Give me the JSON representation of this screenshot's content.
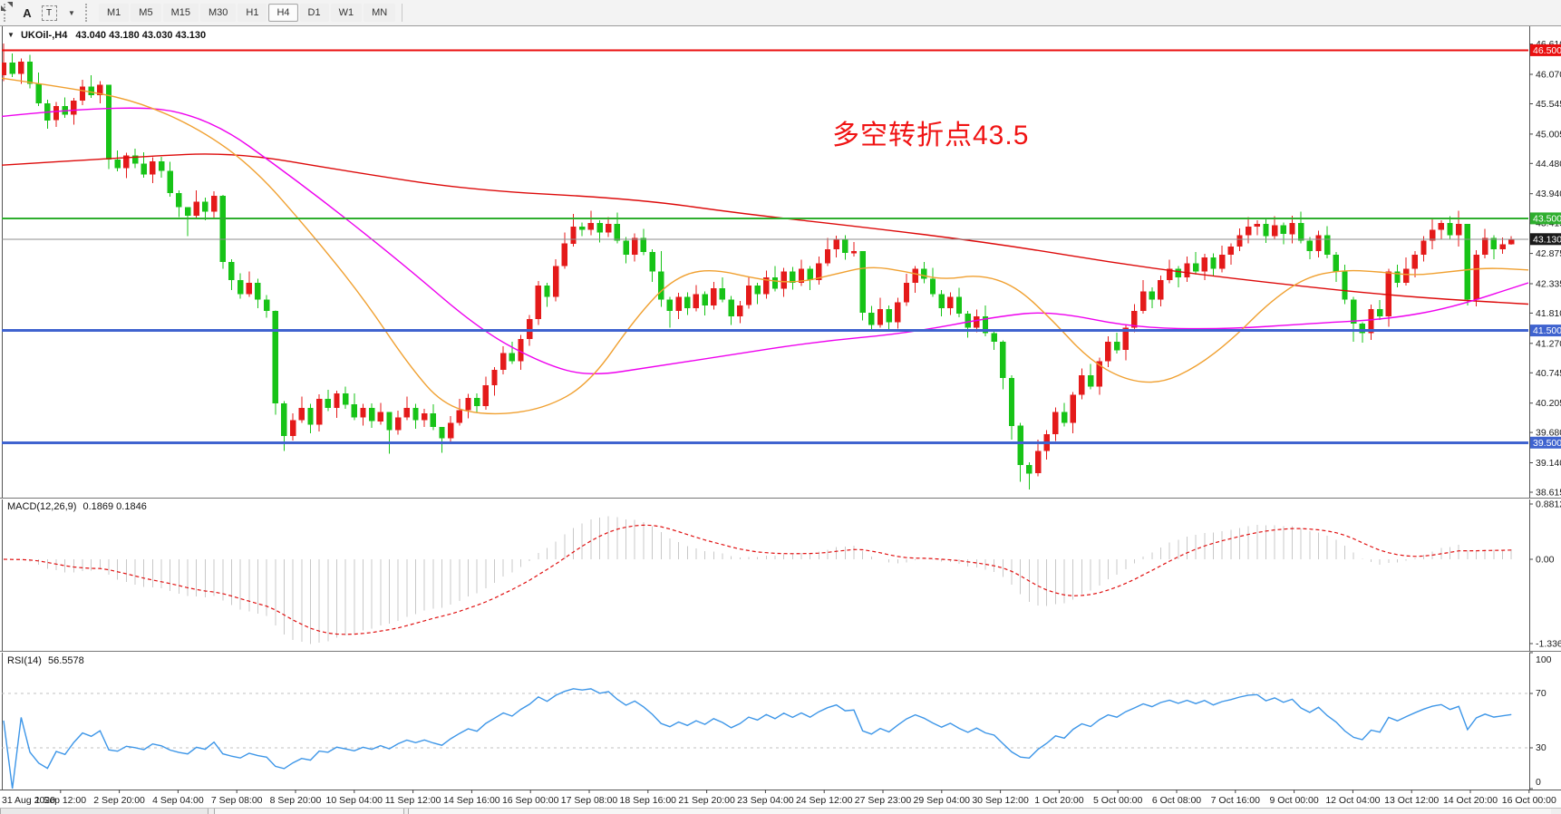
{
  "toolbar": {
    "tool_a": "A",
    "tool_t": "T",
    "timeframes": [
      "M1",
      "M5",
      "M15",
      "M30",
      "H1",
      "H4",
      "D1",
      "W1",
      "MN"
    ],
    "active_timeframe": "H4"
  },
  "title": {
    "collapse_icon": "▼",
    "symbol_period": "UKOil-,H4",
    "ohlc_text": "43.040 43.180 43.030 43.130"
  },
  "annotation": {
    "text": "多空转折点43.5",
    "color": "#f01414"
  },
  "indicators": {
    "macd": {
      "label": "MACD(12,26,9)",
      "values": "0.1869 0.1846"
    },
    "rsi": {
      "label": "RSI(14)",
      "value": "56.5578"
    }
  },
  "chart_data": {
    "type": "candlestick",
    "symbol": "UKOil-",
    "timeframe": "H4",
    "color_convention": "red = bullish, green = bearish (Chinese convention)",
    "bull_color": "#e41a1a",
    "bear_color": "#17c317",
    "current_price": 43.13,
    "last_candle_ohlc": [
      43.04,
      43.18,
      43.03,
      43.13
    ],
    "first_open": 46.05,
    "closes": [
      46.28,
      46.08,
      46.3,
      45.9,
      45.55,
      45.25,
      45.5,
      45.35,
      45.6,
      45.85,
      45.7,
      45.88,
      44.55,
      44.4,
      44.62,
      44.48,
      44.28,
      44.52,
      44.35,
      43.95,
      43.7,
      43.55,
      43.8,
      43.62,
      43.9,
      42.72,
      42.4,
      42.15,
      42.35,
      42.05,
      41.85,
      40.2,
      39.62,
      39.9,
      40.12,
      39.82,
      40.28,
      40.12,
      40.38,
      40.18,
      39.95,
      40.12,
      39.88,
      40.05,
      39.72,
      39.95,
      40.12,
      39.9,
      40.02,
      39.78,
      39.58,
      39.85,
      40.08,
      40.3,
      40.15,
      40.52,
      40.8,
      41.1,
      40.95,
      41.35,
      41.7,
      42.3,
      42.1,
      42.65,
      43.05,
      43.35,
      43.3,
      43.42,
      43.25,
      43.4,
      43.1,
      42.85,
      43.15,
      42.9,
      42.55,
      42.05,
      41.85,
      42.1,
      41.9,
      42.15,
      41.95,
      42.25,
      42.05,
      41.75,
      41.95,
      42.3,
      42.15,
      42.45,
      42.25,
      42.55,
      42.35,
      42.6,
      42.4,
      42.7,
      42.95,
      43.12,
      42.88,
      42.92,
      41.82,
      41.6,
      41.88,
      41.65,
      42.0,
      42.35,
      42.6,
      42.42,
      42.15,
      41.9,
      42.1,
      41.8,
      41.55,
      41.75,
      41.45,
      41.3,
      40.65,
      39.8,
      39.1,
      38.95,
      39.35,
      39.65,
      40.05,
      39.85,
      40.35,
      40.7,
      40.5,
      40.95,
      41.3,
      41.15,
      41.55,
      41.85,
      42.2,
      42.05,
      42.4,
      42.6,
      42.45,
      42.7,
      42.55,
      42.8,
      42.6,
      42.85,
      43.0,
      43.2,
      43.35,
      43.4,
      43.18,
      43.38,
      43.22,
      43.42,
      43.1,
      42.92,
      43.2,
      42.85,
      42.55,
      42.05,
      41.62,
      41.45,
      41.88,
      41.75,
      42.55,
      42.35,
      42.6,
      42.85,
      43.1,
      43.3,
      43.42,
      43.2,
      43.4,
      42.05,
      42.85,
      43.15,
      42.95,
      43.04,
      43.13
    ],
    "wick_overrides": {
      "0": [
        46.62,
        45.95
      ],
      "12": [
        45.86,
        44.38
      ],
      "21": [
        43.6,
        43.18
      ],
      "25": [
        43.92,
        42.6
      ],
      "31": [
        41.86,
        40.0
      ],
      "32": [
        40.24,
        39.35
      ],
      "44": [
        39.78,
        39.3
      ],
      "50": [
        39.64,
        39.32
      ],
      "61": [
        42.38,
        41.6
      ],
      "65": [
        43.58,
        43.0
      ],
      "67": [
        43.64,
        43.2
      ],
      "75": [
        42.92,
        41.92
      ],
      "76": [
        42.1,
        41.55
      ],
      "98": [
        42.92,
        41.68
      ],
      "114": [
        41.32,
        40.45
      ],
      "115": [
        40.7,
        39.55
      ],
      "116": [
        39.85,
        38.8
      ],
      "117": [
        39.15,
        38.66
      ],
      "126": [
        41.4,
        40.85
      ],
      "142": [
        43.52,
        43.05
      ],
      "147": [
        43.55,
        43.05
      ],
      "154": [
        42.1,
        41.3
      ],
      "155": [
        41.65,
        41.28
      ],
      "163": [
        43.48,
        42.95
      ],
      "166": [
        43.64,
        43.0
      ],
      "167": [
        43.4,
        41.95
      ],
      "172": [
        43.18,
        43.03
      ]
    },
    "horizontal_lines": [
      {
        "price": 46.5,
        "label": "46.500",
        "color": "#ea0f0f",
        "width": 2
      },
      {
        "price": 43.5,
        "label": "43.500",
        "color": "#2eae2e",
        "width": 2
      },
      {
        "price": 43.13,
        "label": "43.130",
        "color": "#8c8c8c",
        "width": 1,
        "label_bg": "#1a1a1a",
        "is_current": true
      },
      {
        "price": 41.5,
        "label": "41.500",
        "color": "#3f63cf",
        "width": 3
      },
      {
        "price": 39.5,
        "label": "39.500",
        "color": "#3f63cf",
        "width": 3
      }
    ],
    "price_axis_ticks": [
      46.61,
      46.07,
      45.545,
      45.005,
      44.48,
      43.94,
      43.415,
      42.875,
      42.335,
      41.81,
      41.27,
      40.745,
      40.205,
      39.68,
      39.14,
      38.615
    ],
    "moving_averages": [
      {
        "name": "slow-ma-red",
        "color": "#dd0a0a",
        "points": [
          [
            2,
            44.45
          ],
          [
            150,
            44.6
          ],
          [
            260,
            44.68
          ],
          [
            380,
            44.35
          ],
          [
            520,
            44.0
          ],
          [
            700,
            43.85
          ],
          [
            820,
            43.58
          ],
          [
            950,
            43.35
          ],
          [
            1100,
            43.05
          ],
          [
            1250,
            42.65
          ],
          [
            1400,
            42.35
          ],
          [
            1550,
            42.1
          ],
          [
            1686,
            41.97
          ]
        ]
      },
      {
        "name": "mid-ma-magenta",
        "color": "#ee00ee",
        "points": [
          [
            2,
            45.32
          ],
          [
            110,
            45.5
          ],
          [
            220,
            45.42
          ],
          [
            330,
            44.15
          ],
          [
            440,
            42.75
          ],
          [
            530,
            41.5
          ],
          [
            600,
            40.9
          ],
          [
            650,
            40.68
          ],
          [
            720,
            40.85
          ],
          [
            800,
            41.05
          ],
          [
            900,
            41.3
          ],
          [
            1000,
            41.45
          ],
          [
            1100,
            41.75
          ],
          [
            1160,
            41.85
          ],
          [
            1250,
            41.55
          ],
          [
            1350,
            41.52
          ],
          [
            1450,
            41.63
          ],
          [
            1530,
            41.7
          ],
          [
            1600,
            41.9
          ],
          [
            1686,
            42.35
          ]
        ]
      },
      {
        "name": "fast-ma-orange",
        "color": "#f0a030",
        "points": [
          [
            2,
            46.0
          ],
          [
            80,
            45.82
          ],
          [
            150,
            45.6
          ],
          [
            220,
            45.1
          ],
          [
            280,
            44.4
          ],
          [
            340,
            43.3
          ],
          [
            400,
            42.1
          ],
          [
            450,
            40.9
          ],
          [
            490,
            40.15
          ],
          [
            540,
            39.98
          ],
          [
            600,
            40.1
          ],
          [
            650,
            40.55
          ],
          [
            700,
            41.7
          ],
          [
            740,
            42.4
          ],
          [
            780,
            42.62
          ],
          [
            840,
            42.4
          ],
          [
            880,
            42.35
          ],
          [
            920,
            42.5
          ],
          [
            960,
            42.65
          ],
          [
            1000,
            42.55
          ],
          [
            1040,
            42.4
          ],
          [
            1080,
            42.5
          ],
          [
            1120,
            42.3
          ],
          [
            1160,
            41.7
          ],
          [
            1200,
            41.0
          ],
          [
            1240,
            40.62
          ],
          [
            1280,
            40.55
          ],
          [
            1320,
            40.85
          ],
          [
            1360,
            41.35
          ],
          [
            1400,
            42.0
          ],
          [
            1440,
            42.45
          ],
          [
            1480,
            42.58
          ],
          [
            1520,
            42.55
          ],
          [
            1560,
            42.48
          ],
          [
            1600,
            42.55
          ],
          [
            1640,
            42.62
          ],
          [
            1686,
            42.58
          ]
        ]
      }
    ],
    "x_axis_labels": [
      "31 Aug 2020",
      "1 Sep 12:00",
      "2 Sep 20:00",
      "4 Sep 04:00",
      "7 Sep 08:00",
      "8 Sep 20:00",
      "10 Sep 04:00",
      "11 Sep 12:00",
      "14 Sep 16:00",
      "16 Sep 00:00",
      "17 Sep 08:00",
      "18 Sep 16:00",
      "21 Sep 20:00",
      "23 Sep 04:00",
      "24 Sep 12:00",
      "27 Sep 23:00",
      "29 Sep 04:00",
      "30 Sep 12:00",
      "1 Oct 20:00",
      "5 Oct 00:00",
      "6 Oct 08:00",
      "7 Oct 16:00",
      "9 Oct 00:00",
      "12 Oct 04:00",
      "13 Oct 12:00",
      "14 Oct 20:00",
      "16 Oct 00:00"
    ],
    "macd": {
      "params": "12,26,9",
      "current_values": [
        0.1869,
        0.1846
      ],
      "axis_ticks": [
        "0.8812",
        "0.00",
        "-1.3368"
      ],
      "histogram_color": "#c8c8c8",
      "signal_color": "#e01010"
    },
    "rsi": {
      "period": 14,
      "current_value": 56.5578,
      "axis_ticks": [
        "100",
        "70",
        "30",
        "0"
      ],
      "levels": [
        70,
        30
      ],
      "line_color": "#3d96e8",
      "level_color": "#c0c0c0"
    }
  }
}
